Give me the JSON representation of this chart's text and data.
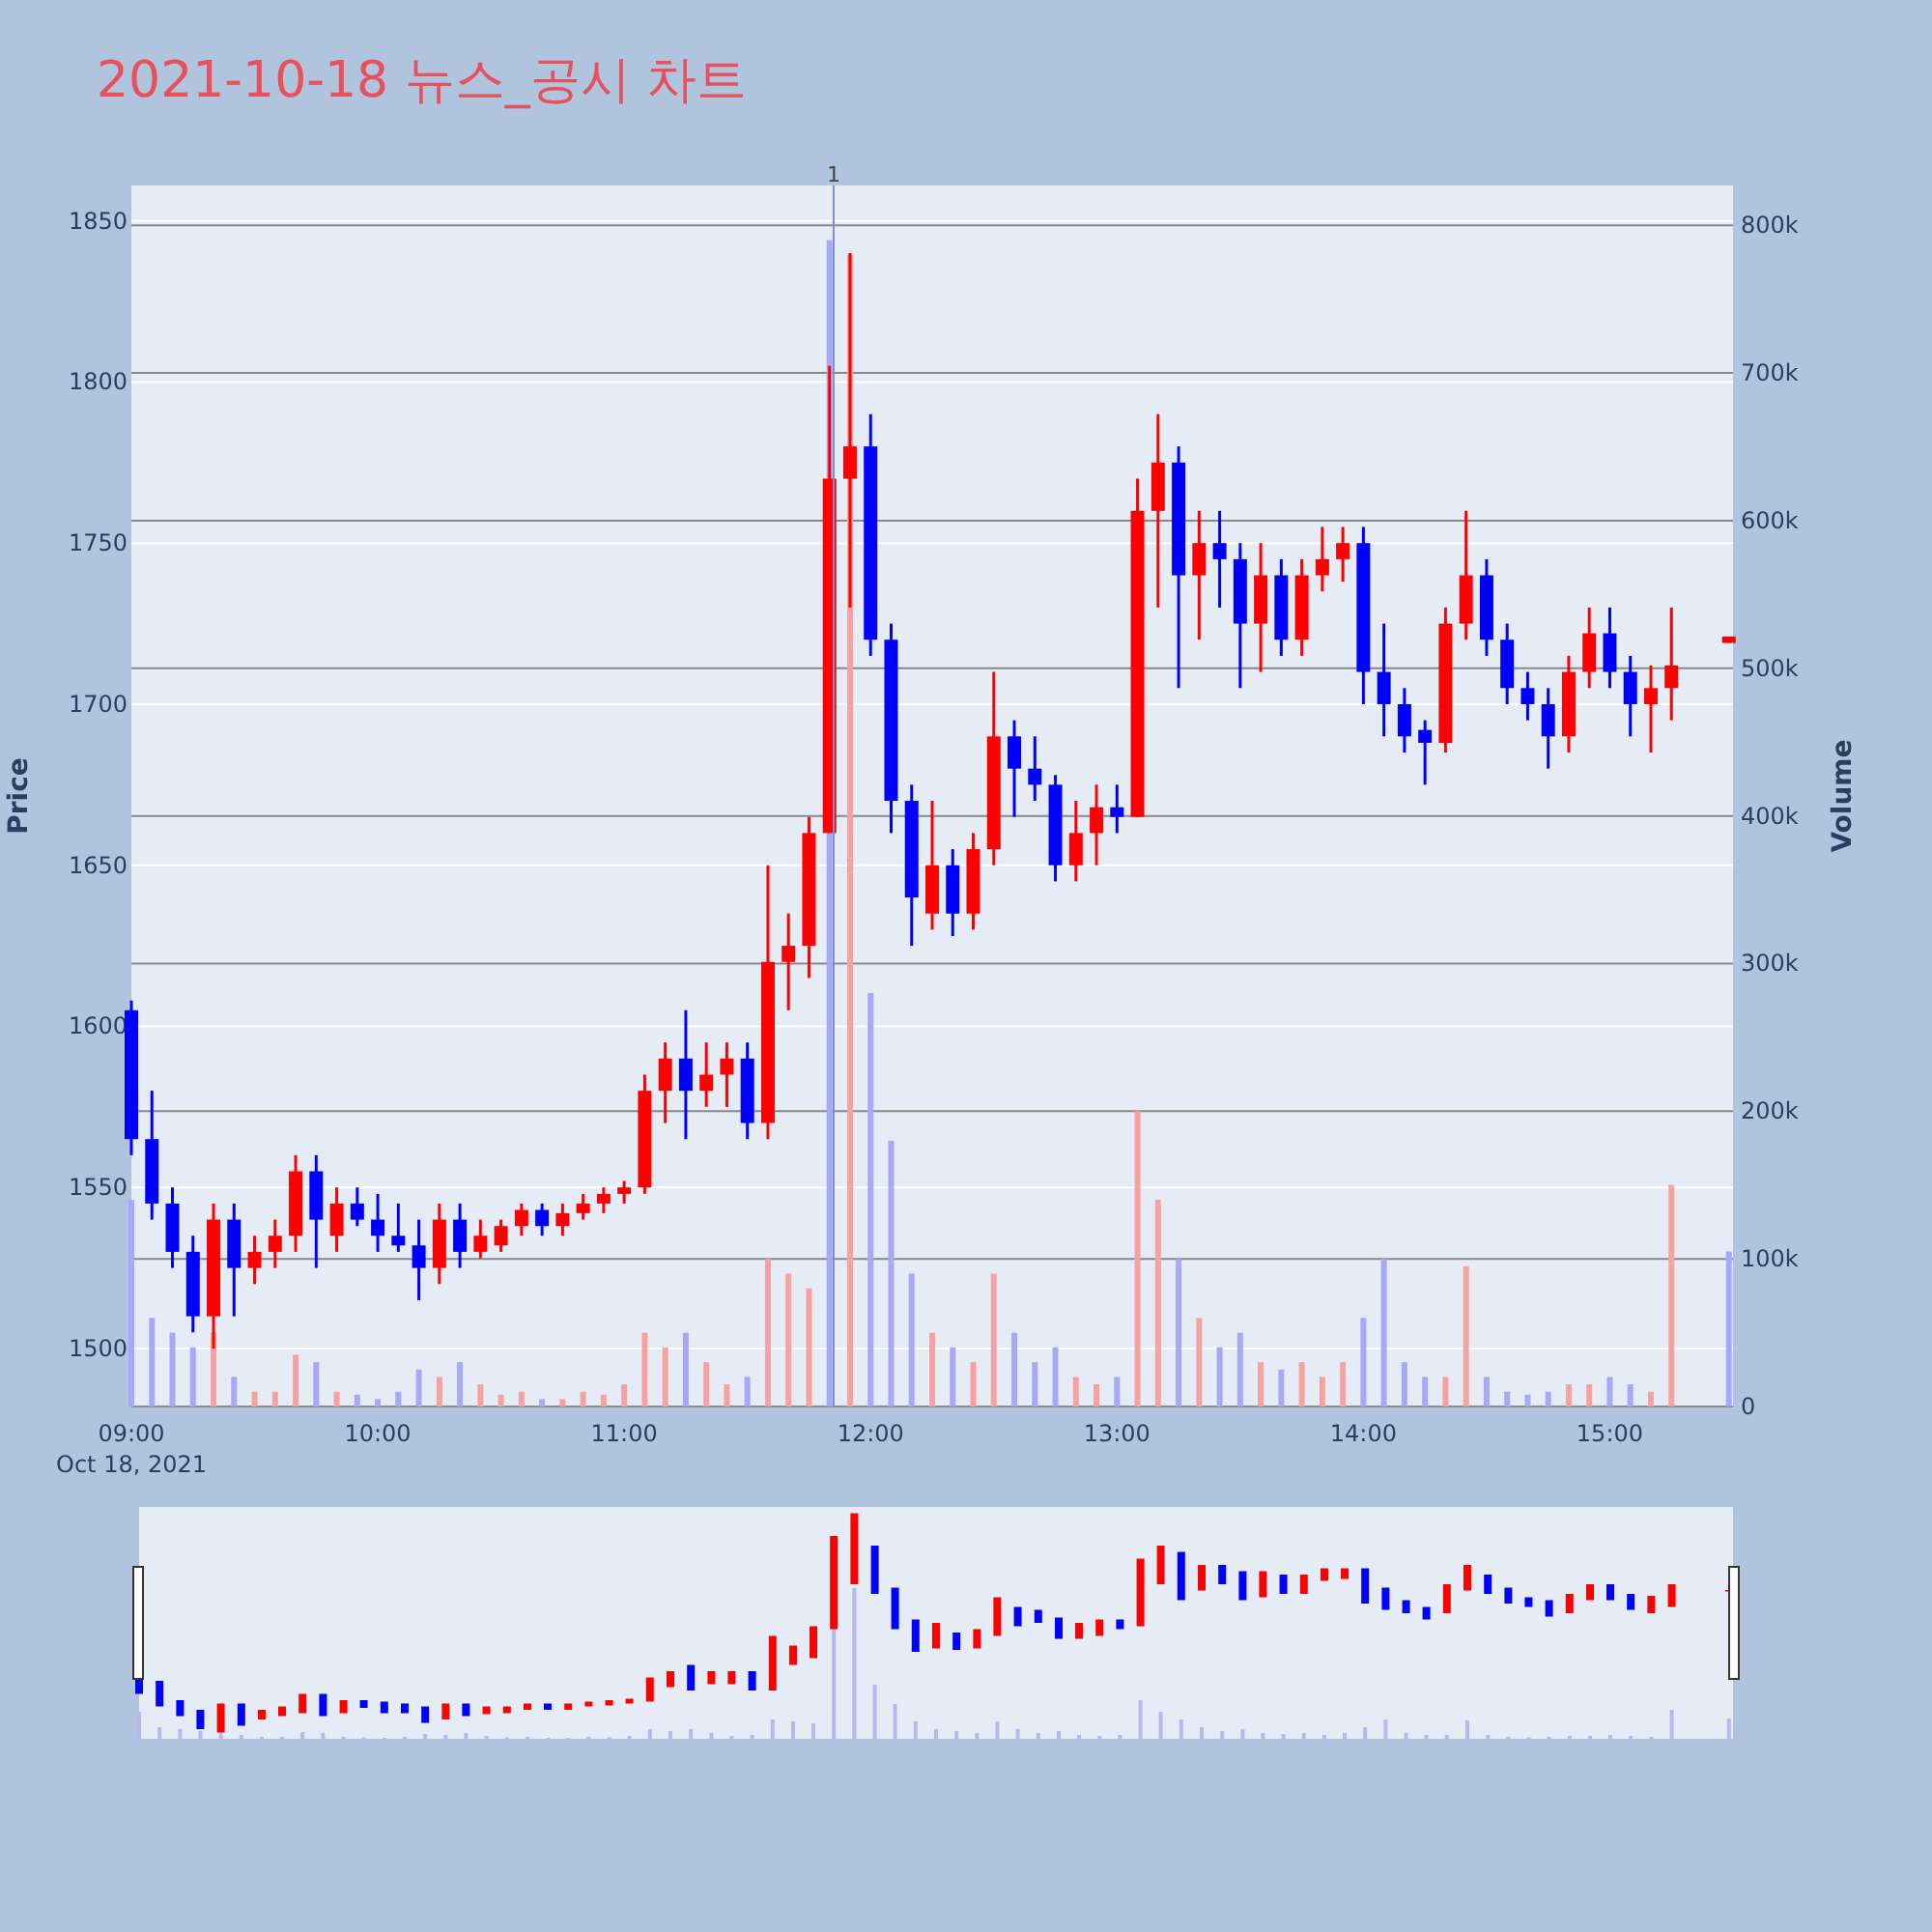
{
  "chart_data": {
    "type": "candlestick",
    "title": "2021-10-18 뉴스_공시 차트",
    "ylabel": "Price",
    "y2label": "Volume",
    "x": [
      "2021-10-18T09:00",
      "2021-10-18T09:05",
      "2021-10-18T09:10",
      "2021-10-18T09:15",
      "2021-10-18T09:20",
      "2021-10-18T09:25",
      "2021-10-18T09:30",
      "2021-10-18T09:35",
      "2021-10-18T09:40",
      "2021-10-18T09:45",
      "2021-10-18T09:50",
      "2021-10-18T09:55",
      "2021-10-18T10:00",
      "2021-10-18T10:05",
      "2021-10-18T10:10",
      "2021-10-18T10:15",
      "2021-10-18T10:20",
      "2021-10-18T10:25",
      "2021-10-18T10:30",
      "2021-10-18T10:35",
      "2021-10-18T10:40",
      "2021-10-18T10:45",
      "2021-10-18T10:50",
      "2021-10-18T10:55",
      "2021-10-18T11:00",
      "2021-10-18T11:05",
      "2021-10-18T11:10",
      "2021-10-18T11:15",
      "2021-10-18T11:20",
      "2021-10-18T11:25",
      "2021-10-18T11:30",
      "2021-10-18T11:35",
      "2021-10-18T11:40",
      "2021-10-18T11:45",
      "2021-10-18T11:50",
      "2021-10-18T11:55",
      "2021-10-18T12:00",
      "2021-10-18T12:05",
      "2021-10-18T12:10",
      "2021-10-18T12:15",
      "2021-10-18T12:20",
      "2021-10-18T12:25",
      "2021-10-18T12:30",
      "2021-10-18T12:35",
      "2021-10-18T12:40",
      "2021-10-18T12:45",
      "2021-10-18T12:50",
      "2021-10-18T12:55",
      "2021-10-18T13:00",
      "2021-10-18T13:05",
      "2021-10-18T13:10",
      "2021-10-18T13:15",
      "2021-10-18T13:20",
      "2021-10-18T13:25",
      "2021-10-18T13:30",
      "2021-10-18T13:35",
      "2021-10-18T13:40",
      "2021-10-18T13:45",
      "2021-10-18T13:50",
      "2021-10-18T13:55",
      "2021-10-18T14:00",
      "2021-10-18T14:05",
      "2021-10-18T14:10",
      "2021-10-18T14:15",
      "2021-10-18T14:20",
      "2021-10-18T14:25",
      "2021-10-18T14:30",
      "2021-10-18T14:35",
      "2021-10-18T14:40",
      "2021-10-18T14:45",
      "2021-10-18T14:50",
      "2021-10-18T14:55",
      "2021-10-18T15:00",
      "2021-10-18T15:05",
      "2021-10-18T15:10",
      "2021-10-18T15:15",
      "2021-10-18T15:29"
    ],
    "series": [
      {
        "ohlc": [
          [
            1605,
            1608,
            1560,
            1565
          ],
          [
            1565,
            1580,
            1540,
            1545
          ],
          [
            1545,
            1550,
            1525,
            1530
          ],
          [
            1530,
            1535,
            1505,
            1510
          ],
          [
            1510,
            1545,
            1500,
            1540
          ],
          [
            1540,
            1545,
            1510,
            1525
          ],
          [
            1525,
            1535,
            1520,
            1530
          ],
          [
            1530,
            1540,
            1525,
            1535
          ],
          [
            1535,
            1560,
            1530,
            1555
          ],
          [
            1555,
            1560,
            1525,
            1540
          ],
          [
            1535,
            1550,
            1530,
            1545
          ],
          [
            1545,
            1550,
            1538,
            1540
          ],
          [
            1540,
            1548,
            1530,
            1535
          ],
          [
            1535,
            1545,
            1530,
            1532
          ],
          [
            1532,
            1540,
            1515,
            1525
          ],
          [
            1525,
            1545,
            1520,
            1540
          ],
          [
            1540,
            1545,
            1525,
            1530
          ],
          [
            1530,
            1540,
            1528,
            1535
          ],
          [
            1532,
            1540,
            1530,
            1538
          ],
          [
            1538,
            1545,
            1535,
            1543
          ],
          [
            1543,
            1545,
            1535,
            1538
          ],
          [
            1538,
            1545,
            1535,
            1542
          ],
          [
            1542,
            1548,
            1540,
            1545
          ],
          [
            1545,
            1550,
            1542,
            1548
          ],
          [
            1548,
            1552,
            1545,
            1550
          ],
          [
            1550,
            1585,
            1548,
            1580
          ],
          [
            1580,
            1595,
            1570,
            1590
          ],
          [
            1590,
            1605,
            1565,
            1580
          ],
          [
            1580,
            1595,
            1575,
            1585
          ],
          [
            1585,
            1595,
            1575,
            1590
          ],
          [
            1590,
            1595,
            1565,
            1570
          ],
          [
            1570,
            1650,
            1565,
            1620
          ],
          [
            1620,
            1635,
            1605,
            1625
          ],
          [
            1625,
            1665,
            1615,
            1660
          ],
          [
            1660,
            1805,
            1660,
            1770
          ],
          [
            1770,
            1840,
            1730,
            1780
          ],
          [
            1780,
            1790,
            1715,
            1720
          ],
          [
            1720,
            1725,
            1660,
            1670
          ],
          [
            1670,
            1675,
            1625,
            1640
          ],
          [
            1635,
            1670,
            1630,
            1650
          ],
          [
            1650,
            1655,
            1628,
            1635
          ],
          [
            1635,
            1660,
            1630,
            1655
          ],
          [
            1655,
            1710,
            1650,
            1690
          ],
          [
            1690,
            1695,
            1665,
            1680
          ],
          [
            1680,
            1690,
            1670,
            1675
          ],
          [
            1675,
            1678,
            1645,
            1650
          ],
          [
            1650,
            1670,
            1645,
            1660
          ],
          [
            1660,
            1675,
            1650,
            1668
          ],
          [
            1668,
            1675,
            1660,
            1665
          ],
          [
            1665,
            1770,
            1665,
            1760
          ],
          [
            1760,
            1790,
            1730,
            1775
          ],
          [
            1775,
            1780,
            1705,
            1740
          ],
          [
            1740,
            1760,
            1720,
            1750
          ],
          [
            1750,
            1760,
            1730,
            1745
          ],
          [
            1745,
            1750,
            1705,
            1725
          ],
          [
            1725,
            1750,
            1710,
            1740
          ],
          [
            1740,
            1745,
            1715,
            1720
          ],
          [
            1720,
            1745,
            1715,
            1740
          ],
          [
            1740,
            1755,
            1735,
            1745
          ],
          [
            1745,
            1755,
            1738,
            1750
          ],
          [
            1750,
            1755,
            1700,
            1710
          ],
          [
            1710,
            1725,
            1690,
            1700
          ],
          [
            1700,
            1705,
            1685,
            1690
          ],
          [
            1692,
            1695,
            1675,
            1688
          ],
          [
            1688,
            1730,
            1685,
            1725
          ],
          [
            1725,
            1760,
            1720,
            1740
          ],
          [
            1740,
            1745,
            1715,
            1720
          ],
          [
            1720,
            1725,
            1700,
            1705
          ],
          [
            1705,
            1710,
            1695,
            1700
          ],
          [
            1700,
            1705,
            1680,
            1690
          ],
          [
            1690,
            1715,
            1685,
            1710
          ],
          [
            1710,
            1730,
            1705,
            1722
          ],
          [
            1722,
            1730,
            1705,
            1710
          ],
          [
            1710,
            1715,
            1690,
            1700
          ],
          [
            1700,
            1712,
            1685,
            1705
          ],
          [
            1705,
            1730,
            1695,
            1712
          ],
          [
            1719,
            1721,
            1719,
            1721
          ]
        ]
      },
      {
        "type": "bar",
        "axis": "y2",
        "values": [
          140000,
          60000,
          50000,
          40000,
          50000,
          20000,
          10000,
          10000,
          35000,
          30000,
          10000,
          8000,
          5000,
          10000,
          25000,
          20000,
          30000,
          15000,
          8000,
          10000,
          5000,
          5000,
          10000,
          8000,
          15000,
          50000,
          40000,
          50000,
          30000,
          15000,
          20000,
          100000,
          90000,
          80000,
          790000,
          780000,
          280000,
          180000,
          90000,
          50000,
          40000,
          30000,
          90000,
          50000,
          30000,
          40000,
          20000,
          15000,
          20000,
          200000,
          140000,
          100000,
          60000,
          40000,
          50000,
          30000,
          25000,
          30000,
          20000,
          30000,
          60000,
          100000,
          30000,
          20000,
          20000,
          95000,
          20000,
          10000,
          8000,
          10000,
          15000,
          15000,
          20000,
          15000,
          10000,
          150000,
          105000
        ],
        "colors": [
          "#a8a8f8",
          "#a8a8f8",
          "#a8a8f8",
          "#a8a8f8",
          "#f7a1a1",
          "#a8a8f8",
          "#f7a1a1",
          "#f7a1a1",
          "#f7a1a1",
          "#a8a8f8",
          "#f7a1a1",
          "#a8a8f8",
          "#a8a8f8",
          "#a8a8f8",
          "#a8a8f8",
          "#f7a1a1",
          "#a8a8f8",
          "#f7a1a1",
          "#f7a1a1",
          "#f7a1a1",
          "#a8a8f8",
          "#f7a1a1",
          "#f7a1a1",
          "#f7a1a1",
          "#f7a1a1",
          "#f7a1a1",
          "#f7a1a1",
          "#a8a8f8",
          "#f7a1a1",
          "#f7a1a1",
          "#a8a8f8",
          "#f7a1a1",
          "#f7a1a1",
          "#f7a1a1",
          "#a8a8f8",
          "#f7a1a1",
          "#a8a8f8",
          "#a8a8f8",
          "#a8a8f8",
          "#f7a1a1",
          "#a8a8f8",
          "#f7a1a1",
          "#f7a1a1",
          "#a8a8f8",
          "#a8a8f8",
          "#a8a8f8",
          "#f7a1a1",
          "#f7a1a1",
          "#a8a8f8",
          "#f7a1a1",
          "#f7a1a1",
          "#a8a8f8",
          "#f7a1a1",
          "#a8a8f8",
          "#a8a8f8",
          "#f7a1a1",
          "#a8a8f8",
          "#f7a1a1",
          "#f7a1a1",
          "#f7a1a1",
          "#a8a8f8",
          "#a8a8f8",
          "#a8a8f8",
          "#a8a8f8",
          "#f7a1a1",
          "#f7a1a1",
          "#a8a8f8",
          "#a8a8f8",
          "#a8a8f8",
          "#a8a8f8",
          "#f7a1a1",
          "#f7a1a1",
          "#a8a8f8",
          "#a8a8f8",
          "#f7a1a1",
          "#f7a1a1",
          "#a8a8f8"
        ]
      }
    ],
    "xlim": [
      "2021-10-18T09:00",
      "2021-10-18T15:30"
    ],
    "xticks": [
      {
        "value": "2021-10-18T09:00",
        "label": "09:00\nOct 18, 2021"
      },
      {
        "value": "2021-10-18T10:00",
        "label": "10:00"
      },
      {
        "value": "2021-10-18T11:00",
        "label": "11:00"
      },
      {
        "value": "2021-10-18T12:00",
        "label": "12:00"
      },
      {
        "value": "2021-10-18T13:00",
        "label": "13:00"
      },
      {
        "value": "2021-10-18T14:00",
        "label": "14:00"
      },
      {
        "value": "2021-10-18T15:00",
        "label": "15:00"
      }
    ],
    "ylim": [
      1482,
      1861
    ],
    "yticks": [
      1500,
      1550,
      1600,
      1650,
      1700,
      1750,
      1800,
      1850
    ],
    "y2lim": [
      0,
      827000
    ],
    "y2ticks": [
      {
        "value": 0,
        "label": "0"
      },
      {
        "value": 100000,
        "label": "100k"
      },
      {
        "value": 200000,
        "label": "200k"
      },
      {
        "value": 300000,
        "label": "300k"
      },
      {
        "value": 400000,
        "label": "400k"
      },
      {
        "value": 500000,
        "label": "500k"
      },
      {
        "value": 600000,
        "label": "600k"
      },
      {
        "value": 700000,
        "label": "700k"
      },
      {
        "value": 800000,
        "label": "800k"
      }
    ],
    "ref_lines": [
      {
        "axis": "x",
        "value": "2021-10-18T11:51",
        "label": "1",
        "color": "#7f8fd0"
      }
    ],
    "grid": "y"
  }
}
